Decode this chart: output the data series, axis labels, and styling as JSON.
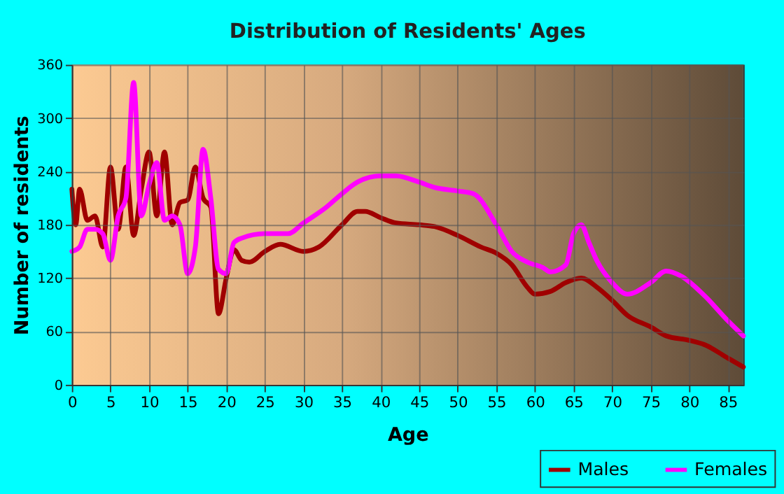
{
  "chart_data": {
    "type": "line",
    "title": "Distribution of Residents' Ages",
    "xlabel": "Age",
    "ylabel": "Number of residents",
    "xlim": [
      0,
      87
    ],
    "xticks": [
      0,
      5,
      10,
      15,
      20,
      25,
      30,
      35,
      40,
      45,
      50,
      55,
      60,
      65,
      70,
      75,
      80,
      85
    ],
    "ylim": [
      0,
      360
    ],
    "yticks": [
      0,
      60,
      120,
      180,
      240,
      300,
      360
    ],
    "grid": true,
    "legend": "bottom right",
    "line_style": "solid",
    "series": [
      {
        "name": "Males",
        "color": "#a00000",
        "x": [
          0,
          0.5,
          1,
          2,
          3,
          4,
          5,
          6,
          7,
          8,
          9,
          10,
          11,
          12,
          13,
          14,
          15,
          16,
          17,
          18,
          19,
          20,
          21,
          22,
          23,
          25,
          27,
          30,
          32,
          35,
          37,
          38,
          40,
          42,
          45,
          47,
          50,
          53,
          55,
          57,
          59,
          60,
          62,
          64,
          66,
          68,
          70,
          72,
          75,
          77,
          80,
          82,
          85,
          87
        ],
        "values": [
          220,
          180,
          220,
          185,
          190,
          155,
          245,
          175,
          245,
          168,
          220,
          262,
          190,
          262,
          180,
          205,
          208,
          245,
          210,
          200,
          80,
          120,
          152,
          140,
          138,
          150,
          158,
          150,
          155,
          180,
          195,
          195,
          188,
          182,
          180,
          178,
          168,
          155,
          148,
          135,
          110,
          102,
          105,
          115,
          120,
          110,
          95,
          78,
          65,
          55,
          50,
          45,
          30,
          20
        ]
      },
      {
        "name": "Females",
        "color": "#ff00ff",
        "x": [
          0,
          1,
          2,
          3,
          4,
          5,
          6,
          7,
          8,
          9,
          10,
          11,
          12,
          13,
          14,
          15,
          16,
          17,
          18,
          19,
          20,
          21,
          22,
          25,
          28,
          30,
          33,
          35,
          37,
          40,
          42,
          45,
          47,
          50,
          52,
          55,
          57,
          59,
          61,
          62,
          64,
          65,
          66,
          67,
          68,
          70,
          72,
          75,
          77,
          79,
          82,
          85,
          87
        ],
        "values": [
          150,
          155,
          175,
          175,
          170,
          140,
          190,
          210,
          340,
          190,
          225,
          250,
          185,
          190,
          180,
          125,
          155,
          265,
          210,
          130,
          125,
          160,
          165,
          170,
          170,
          182,
          200,
          215,
          228,
          235,
          235,
          228,
          222,
          218,
          215,
          180,
          150,
          138,
          132,
          127,
          135,
          170,
          180,
          160,
          140,
          115,
          102,
          115,
          128,
          122,
          100,
          72,
          55
        ]
      }
    ]
  }
}
